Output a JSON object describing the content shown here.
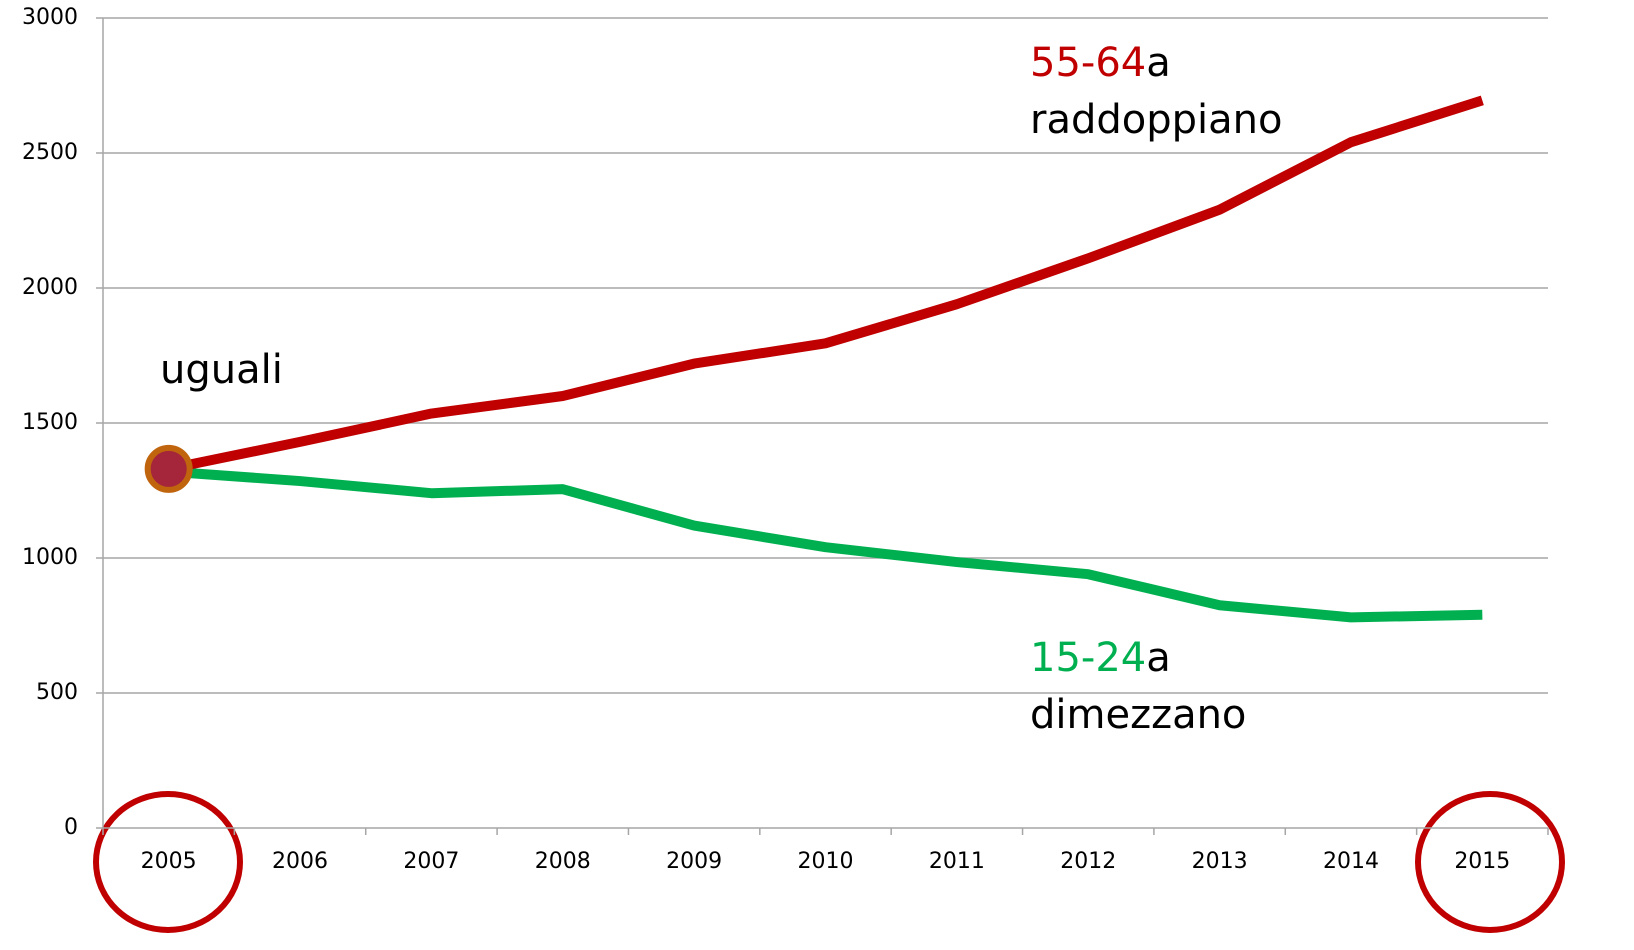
{
  "chart_data": {
    "type": "line",
    "categories": [
      "2005",
      "2006",
      "2007",
      "2008",
      "2009",
      "2010",
      "2011",
      "2012",
      "2013",
      "2014",
      "2015"
    ],
    "series": [
      {
        "name": "55-64",
        "color": "#c00000",
        "values": [
          1330,
          1430,
          1535,
          1600,
          1720,
          1795,
          1940,
          2110,
          2290,
          2540,
          2695
        ]
      },
      {
        "name": "15-24",
        "color": "#00b050",
        "values": [
          1320,
          1285,
          1240,
          1255,
          1120,
          1040,
          985,
          940,
          825,
          780,
          790
        ]
      }
    ],
    "annotations": [
      "a",
      "raddoppiano",
      "a",
      "dimezzano",
      "uguali"
    ],
    "ylim": [
      0,
      3000
    ],
    "yticks": [
      0,
      500,
      1000,
      1500,
      2000,
      2500,
      3000
    ],
    "grid": true
  }
}
